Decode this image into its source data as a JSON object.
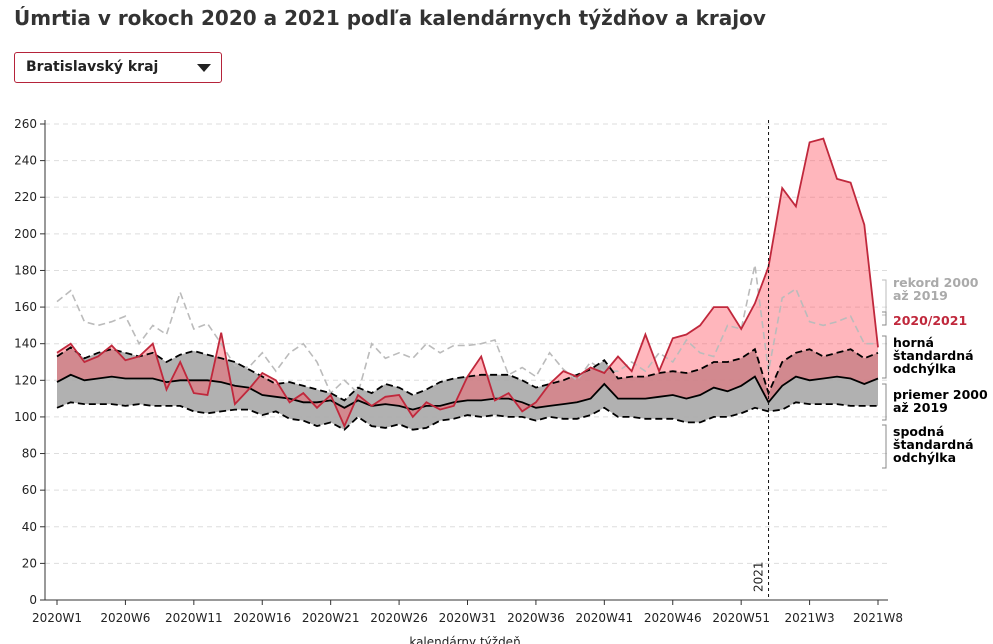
{
  "chart_data": {
    "type": "line",
    "title": "Úmrtia v rokoch 2020 a 2021 podľa kalendárnych týždňov a krajov",
    "selector": "Bratislavský kraj",
    "x_label": "kalendárny týždeň",
    "categories": [
      "2020W1",
      null,
      null,
      null,
      null,
      "2020W6",
      null,
      null,
      null,
      null,
      "2020W11",
      null,
      null,
      null,
      null,
      "2020W16",
      null,
      null,
      null,
      null,
      "2020W21",
      null,
      null,
      null,
      null,
      "2020W26",
      null,
      null,
      null,
      null,
      "2020W31",
      null,
      null,
      null,
      null,
      "2020W36",
      null,
      null,
      null,
      null,
      "2020W41",
      null,
      null,
      null,
      null,
      "2020W46",
      null,
      null,
      null,
      null,
      "2020W51",
      null,
      null,
      null,
      null,
      "2021W3",
      null,
      null,
      null,
      null,
      "2021W8"
    ],
    "ylim": [
      0,
      260
    ],
    "yticks": [
      0,
      20,
      40,
      60,
      80,
      100,
      120,
      140,
      160,
      180,
      200,
      220,
      240,
      260
    ],
    "grid": true,
    "vline": {
      "label": "2021",
      "x": 52
    },
    "series": [
      {
        "name": "rekord 2000 až 2019",
        "color": "#bbbbbb",
        "style": "dashed",
        "values": [
          163,
          169,
          152,
          150,
          152,
          155,
          140,
          150,
          145,
          168,
          148,
          151,
          140,
          128,
          127,
          135,
          125,
          135,
          140,
          130,
          113,
          120,
          113,
          140,
          132,
          135,
          132,
          140,
          135,
          139,
          139,
          140,
          142,
          123,
          127,
          122,
          135,
          126,
          120,
          130,
          125,
          125,
          130,
          125,
          135,
          130,
          142,
          135,
          133,
          150,
          148,
          183,
          125,
          165,
          170,
          152,
          150,
          152,
          155,
          140,
          140
        ]
      },
      {
        "name": "2020/2021",
        "color": "#c0283c",
        "style": "solid",
        "values": [
          135,
          140,
          130,
          133,
          139,
          131,
          133,
          140,
          115,
          130,
          113,
          112,
          146,
          107,
          115,
          124,
          120,
          108,
          113,
          105,
          112,
          95,
          112,
          106,
          111,
          112,
          100,
          108,
          104,
          106,
          122,
          133,
          109,
          113,
          103,
          108,
          118,
          125,
          122,
          127,
          124,
          133,
          125,
          145,
          125,
          143,
          145,
          150,
          160,
          160,
          148,
          162,
          182,
          225,
          215,
          250,
          252,
          230,
          228,
          205,
          138
        ]
      },
      {
        "name": "horná štandardná odchýlka",
        "color": "#000000",
        "style": "dashed",
        "values": [
          133,
          138,
          132,
          135,
          137,
          135,
          133,
          135,
          130,
          134,
          136,
          134,
          132,
          130,
          126,
          122,
          118,
          119,
          117,
          115,
          113,
          109,
          116,
          113,
          118,
          116,
          112,
          115,
          119,
          121,
          122,
          123,
          123,
          123,
          120,
          116,
          118,
          120,
          123,
          126,
          131,
          121,
          122,
          122,
          124,
          125,
          124,
          126,
          130,
          130,
          132,
          137,
          113,
          130,
          135,
          137,
          133,
          135,
          137,
          132,
          135
        ]
      },
      {
        "name": "priemer 2000 až 2019",
        "color": "#000000",
        "style": "solid",
        "values": [
          119,
          123,
          120,
          121,
          122,
          121,
          121,
          121,
          119,
          120,
          120,
          120,
          119,
          117,
          116,
          112,
          111,
          110,
          108,
          108,
          109,
          105,
          109,
          106,
          107,
          106,
          104,
          106,
          106,
          108,
          109,
          109,
          110,
          110,
          108,
          105,
          106,
          107,
          108,
          110,
          118,
          110,
          110,
          110,
          111,
          112,
          110,
          112,
          116,
          114,
          117,
          122,
          108,
          117,
          122,
          120,
          121,
          122,
          121,
          118,
          121
        ]
      },
      {
        "name": "spodná štandardná odchýlka",
        "color": "#000000",
        "style": "dashed",
        "values": [
          105,
          108,
          107,
          107,
          107,
          106,
          107,
          106,
          106,
          106,
          103,
          102,
          103,
          104,
          104,
          101,
          103,
          99,
          98,
          95,
          97,
          93,
          100,
          95,
          94,
          96,
          93,
          94,
          98,
          99,
          101,
          100,
          101,
          100,
          100,
          98,
          100,
          99,
          99,
          101,
          105,
          100,
          100,
          99,
          99,
          99,
          97,
          97,
          100,
          100,
          102,
          105,
          103,
          104,
          108,
          107,
          107,
          107,
          106,
          106,
          106
        ]
      }
    ]
  }
}
